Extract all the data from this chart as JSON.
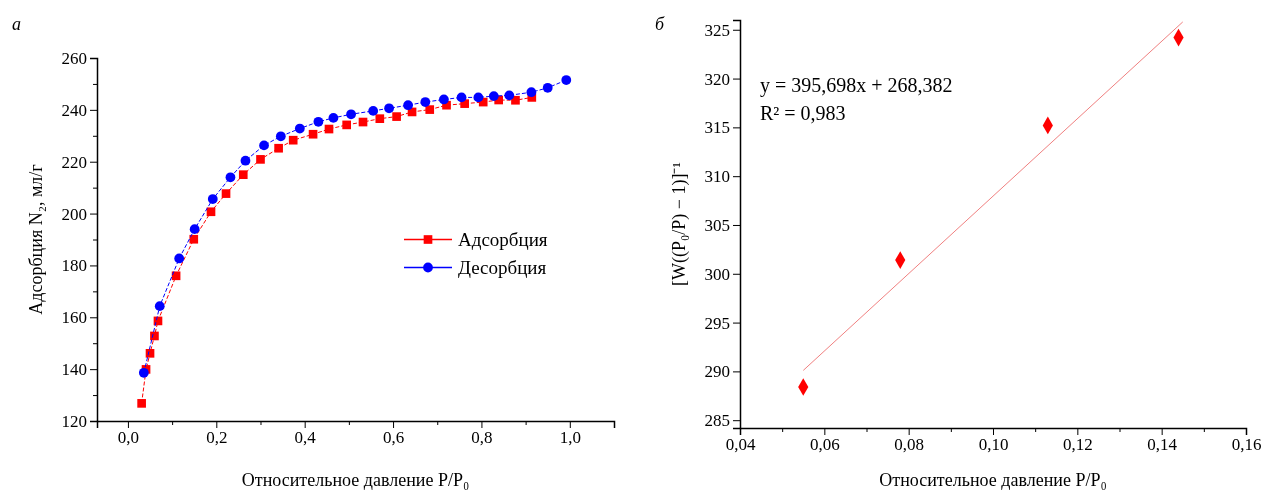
{
  "chart_data": [
    {
      "type": "line",
      "title": "а",
      "xlabel": "Относительное давление P/P₀",
      "ylabel": "Адсорбция N₂, мл/г",
      "xlim": [
        -0.07,
        1.1
      ],
      "ylim": [
        120,
        260
      ],
      "xticks": [
        {
          "value": 0,
          "label": "0,0"
        },
        {
          "value": 0.1,
          "label": null
        },
        {
          "value": 0.2,
          "label": "0,2"
        },
        {
          "value": 0.3,
          "label": null
        },
        {
          "value": 0.4,
          "label": "0,4"
        },
        {
          "value": 0.5,
          "label": null
        },
        {
          "value": 0.6,
          "label": "0,6"
        },
        {
          "value": 0.7,
          "label": null
        },
        {
          "value": 0.8,
          "label": "0,8"
        },
        {
          "value": 0.9,
          "label": null
        },
        {
          "value": 1,
          "label": "1,0"
        }
      ],
      "yticks": [
        120,
        {
          "value": 130,
          "label": null
        },
        140,
        {
          "value": 150,
          "label": null
        },
        160,
        {
          "value": 170,
          "label": null
        },
        180,
        {
          "value": 190,
          "label": null
        },
        200,
        {
          "value": 210,
          "label": null
        },
        220,
        {
          "value": 230,
          "label": null
        },
        240,
        {
          "value": 250,
          "label": null
        },
        260
      ],
      "legend": "right",
      "line_style": "dashed",
      "series": [
        {
          "name": "Адсорбция",
          "color": "#ff0000",
          "marker": "square",
          "x": [
            0.031,
            0.041,
            0.05,
            0.06,
            0.068,
            0.109,
            0.149,
            0.188,
            0.222,
            0.261,
            0.3,
            0.341,
            0.374,
            0.419,
            0.455,
            0.495,
            0.532,
            0.57,
            0.608,
            0.643,
            0.683,
            0.721,
            0.762,
            0.804,
            0.839,
            0.877,
            0.914
          ],
          "values": [
            126.8,
            139.9,
            146.1,
            152.8,
            158.6,
            176.0,
            190.1,
            200.7,
            207.7,
            215.0,
            220.9,
            225.2,
            228.3,
            230.6,
            232.6,
            234.2,
            235.3,
            236.6,
            237.4,
            239.2,
            240.1,
            241.8,
            242.4,
            243.0,
            243.8,
            243.7,
            244.8
          ]
        },
        {
          "name": "Десорбция",
          "color": "#0000ff",
          "marker": "circle",
          "x": [
            0.036,
            0.072,
            0.116,
            0.151,
            0.192,
            0.232,
            0.266,
            0.308,
            0.346,
            0.389,
            0.431,
            0.465,
            0.505,
            0.555,
            0.591,
            0.634,
            0.673,
            0.715,
            0.755,
            0.793,
            0.828,
            0.863,
            0.913,
            0.95,
            0.992
          ],
          "values": [
            138.6,
            164.3,
            182.7,
            194.0,
            205.6,
            214.0,
            220.4,
            226.3,
            229.8,
            232.8,
            235.4,
            236.9,
            238.3,
            239.6,
            240.6,
            241.8,
            243.0,
            244.0,
            244.8,
            244.8,
            245.3,
            245.6,
            246.8,
            248.5,
            251.5
          ]
        }
      ]
    },
    {
      "type": "scatter",
      "title": "б",
      "xlabel": "Относительное давление P/P₀",
      "ylabel": "[W((P₀/P) − 1)]⁻¹",
      "xlim": [
        0.04,
        0.16
      ],
      "ylim": [
        284.2,
        326
      ],
      "xticks": [
        {
          "value": 0.04,
          "label": "0,04"
        },
        {
          "value": 0.05,
          "label": null
        },
        {
          "value": 0.06,
          "label": "0,06"
        },
        {
          "value": 0.07,
          "label": null
        },
        {
          "value": 0.08,
          "label": "0,08"
        },
        {
          "value": 0.09,
          "label": null
        },
        {
          "value": 0.1,
          "label": "0,10"
        },
        {
          "value": 0.11,
          "label": null
        },
        {
          "value": 0.12,
          "label": "0,12"
        },
        {
          "value": 0.13,
          "label": null
        },
        {
          "value": 0.14,
          "label": "0,14"
        },
        {
          "value": 0.15,
          "label": null
        },
        {
          "value": 0.16,
          "label": "0,16"
        }
      ],
      "yticks": [
        285,
        290,
        295,
        300,
        305,
        310,
        315,
        320,
        325
      ],
      "annotations": [
        "y = 395,698x + 268,382",
        "R² = 0,983"
      ],
      "series": [
        {
          "color": "#ff0000",
          "marker": "diamond",
          "x": [
            0.055,
            0.078,
            0.113,
            0.144
          ],
          "values": [
            288.4,
            301.4,
            315.2,
            324.2
          ]
        },
        {
          "type": "line",
          "color": "#f08080",
          "marker": "none",
          "line_style": "solid",
          "x": [
            0.055,
            0.145
          ],
          "values": [
            290.1,
            325.8
          ]
        }
      ]
    }
  ]
}
